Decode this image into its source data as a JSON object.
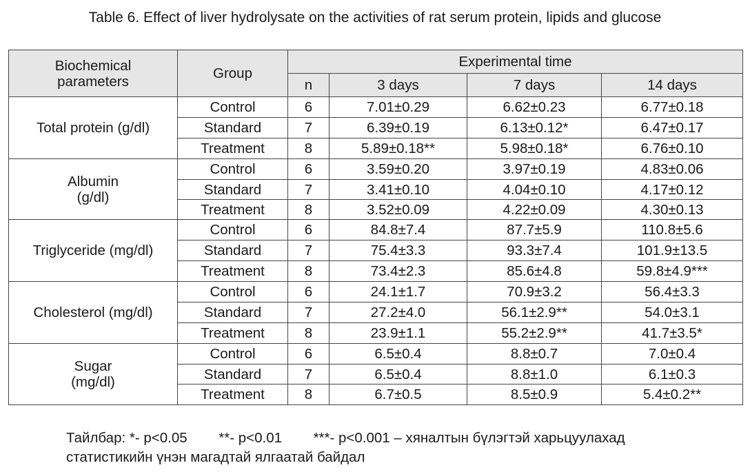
{
  "caption": "Table 6. Effect of liver hydrolysate on the activities of rat serum protein, lipids and glucose",
  "headers": {
    "parameter_line1": "Biochemical",
    "parameter_line2": "parameters",
    "group": "Group",
    "experimental_time": "Experimental time",
    "n": "n",
    "day3": "3 days",
    "day7": "7 days",
    "day14": "14 days"
  },
  "params": [
    {
      "line1": "Total protein (g/dl)",
      "line2": "",
      "rows": [
        {
          "group": "Control",
          "n": "6",
          "d3": "7.01±0.29",
          "d7": "6.62±0.23",
          "d14": "6.77±0.18"
        },
        {
          "group": "Standard",
          "n": "7",
          "d3": "6.39±0.19",
          "d7": "6.13±0.12*",
          "d14": "6.47±0.17"
        },
        {
          "group": "Treatment",
          "n": "8",
          "d3": "5.89±0.18**",
          "d7": "5.98±0.18*",
          "d14": "6.76±0.10"
        }
      ]
    },
    {
      "line1": "Albumin",
      "line2": "(g/dl)",
      "rows": [
        {
          "group": "Control",
          "n": "6",
          "d3": "3.59±0.20",
          "d7": "3.97±0.19",
          "d14": "4.83±0.06"
        },
        {
          "group": "Standard",
          "n": "7",
          "d3": "3.41±0.10",
          "d7": "4.04±0.10",
          "d14": "4.17±0.12"
        },
        {
          "group": "Treatment",
          "n": "8",
          "d3": "3.52±0.09",
          "d7": "4.22±0.09",
          "d14": "4.30±0.13"
        }
      ]
    },
    {
      "line1": "Triglyceride (mg/dl)",
      "line2": "",
      "rows": [
        {
          "group": "Control",
          "n": "6",
          "d3": "84.8±7.4",
          "d7": "87.7±5.9",
          "d14": "110.8±5.6"
        },
        {
          "group": "Standard",
          "n": "7",
          "d3": "75.4±3.3",
          "d7": "93.3±7.4",
          "d14": "101.9±13.5"
        },
        {
          "group": "Treatment",
          "n": "8",
          "d3": "73.4±2.3",
          "d7": "85.6±4.8",
          "d14": "59.8±4.9***"
        }
      ]
    },
    {
      "line1": "Cholesterol (mg/dl)",
      "line2": "",
      "rows": [
        {
          "group": "Control",
          "n": "6",
          "d3": "24.1±1.7",
          "d7": "70.9±3.2",
          "d14": "56.4±3.3"
        },
        {
          "group": "Standard",
          "n": "7",
          "d3": "27.2±4.0",
          "d7": "56.1±2.9**",
          "d14": "54.0±3.1"
        },
        {
          "group": "Treatment",
          "n": "8",
          "d3": "23.9±1.1",
          "d7": "55.2±2.9**",
          "d14": "41.7±3.5*"
        }
      ]
    },
    {
      "line1": "Sugar",
      "line2": "(mg/dl)",
      "rows": [
        {
          "group": "Control",
          "n": "6",
          "d3": "6.5±0.4",
          "d7": "8.8±0.7",
          "d14": "7.0±0.4"
        },
        {
          "group": "Standard",
          "n": "7",
          "d3": "6.5±0.4",
          "d7": "8.8±1.0",
          "d14": "6.1±0.3"
        },
        {
          "group": "Treatment",
          "n": "8",
          "d3": "6.7±0.5",
          "d7": "8.5±0.9",
          "d14": "5.4±0.2**"
        }
      ]
    }
  ],
  "note": {
    "label": "Тайлбар:",
    "item1": "*- p<0.05",
    "item2": "**- p<0.01",
    "item3": "***- p<0.001 – хяналтын бүлэгтэй харьцуулахад",
    "line2": "статистикийн үнэн магадтай ялгаатай байдал"
  }
}
